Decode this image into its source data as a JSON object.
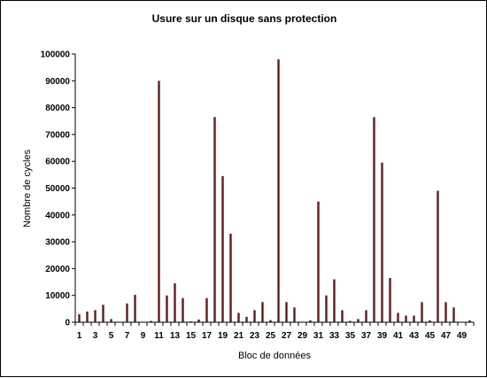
{
  "chart_data": {
    "type": "bar",
    "title": "Usure sur un disque sans protection",
    "xlabel": "Bloc de données",
    "ylabel": "Nombre de cycles",
    "ylim": [
      0,
      100000
    ],
    "y_ticks": [
      "0",
      "10000",
      "20000",
      "30000",
      "40000",
      "50000",
      "60000",
      "70000",
      "80000",
      "90000",
      "100000"
    ],
    "categories": [
      "1",
      "2",
      "3",
      "4",
      "5",
      "6",
      "7",
      "8",
      "9",
      "10",
      "11",
      "12",
      "13",
      "14",
      "15",
      "16",
      "17",
      "18",
      "19",
      "20",
      "21",
      "22",
      "23",
      "24",
      "25",
      "26",
      "27",
      "28",
      "29",
      "30",
      "31",
      "32",
      "33",
      "34",
      "35",
      "36",
      "37",
      "38",
      "39",
      "40",
      "41",
      "42",
      "43",
      "44",
      "45",
      "46",
      "47",
      "48",
      "49",
      "50"
    ],
    "x_tick_labels": [
      "1",
      "3",
      "5",
      "7",
      "9",
      "11",
      "13",
      "15",
      "17",
      "19",
      "21",
      "23",
      "25",
      "27",
      "29",
      "31",
      "33",
      "35",
      "37",
      "39",
      "41",
      "43",
      "45",
      "47",
      "49"
    ],
    "values": [
      3000,
      4000,
      4500,
      6500,
      1200,
      0,
      7000,
      10200,
      0,
      500,
      90000,
      10000,
      14500,
      9000,
      300,
      1000,
      9000,
      76500,
      54500,
      33000,
      3500,
      2000,
      4500,
      7500,
      800,
      98000,
      7500,
      5500,
      0,
      700,
      45000,
      10000,
      16000,
      4500,
      500,
      1200,
      4500,
      76500,
      59500,
      16500,
      3500,
      2500,
      2500,
      7500,
      700,
      49000,
      7500,
      5500,
      0,
      700
    ],
    "grid": false,
    "bar_color": "#5a1f1f"
  }
}
